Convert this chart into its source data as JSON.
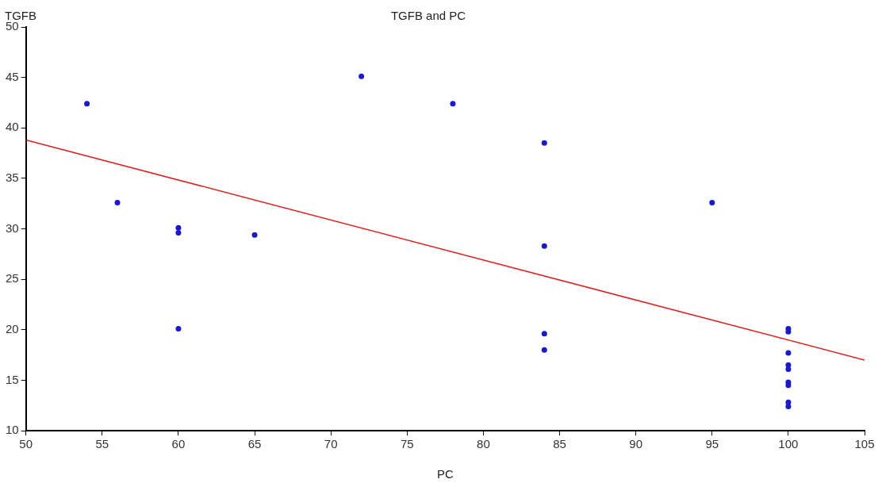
{
  "chart_data": {
    "type": "scatter",
    "title": "TGFB and PC",
    "xlabel": "PC",
    "ylabel": "TGFB",
    "xlim": [
      50,
      105
    ],
    "xticks": [
      50,
      55,
      60,
      65,
      70,
      75,
      80,
      85,
      90,
      95,
      100,
      105
    ],
    "ylim": [
      10,
      50
    ],
    "yticks": [
      10,
      15,
      20,
      25,
      30,
      35,
      40,
      45,
      50
    ],
    "grid": false,
    "legend": false,
    "marker": "circle",
    "series": [
      {
        "type": "scatter",
        "color": "#1a1acc",
        "x": [
          54,
          56,
          60,
          60,
          60,
          65,
          72,
          78,
          84,
          84,
          84,
          84,
          95,
          100,
          100,
          100,
          100,
          100,
          100,
          100,
          100,
          100
        ],
        "values": [
          42.4,
          32.6,
          30.1,
          29.6,
          20.1,
          29.4,
          45.1,
          42.4,
          38.5,
          28.3,
          19.6,
          18.0,
          32.6,
          20.1,
          19.8,
          17.7,
          16.5,
          16.1,
          14.8,
          14.5,
          12.8,
          12.4
        ]
      },
      {
        "type": "line",
        "color": "#dd2222",
        "marker": "none",
        "x": [
          50,
          105
        ],
        "values": [
          38.8,
          17.0
        ]
      }
    ]
  }
}
